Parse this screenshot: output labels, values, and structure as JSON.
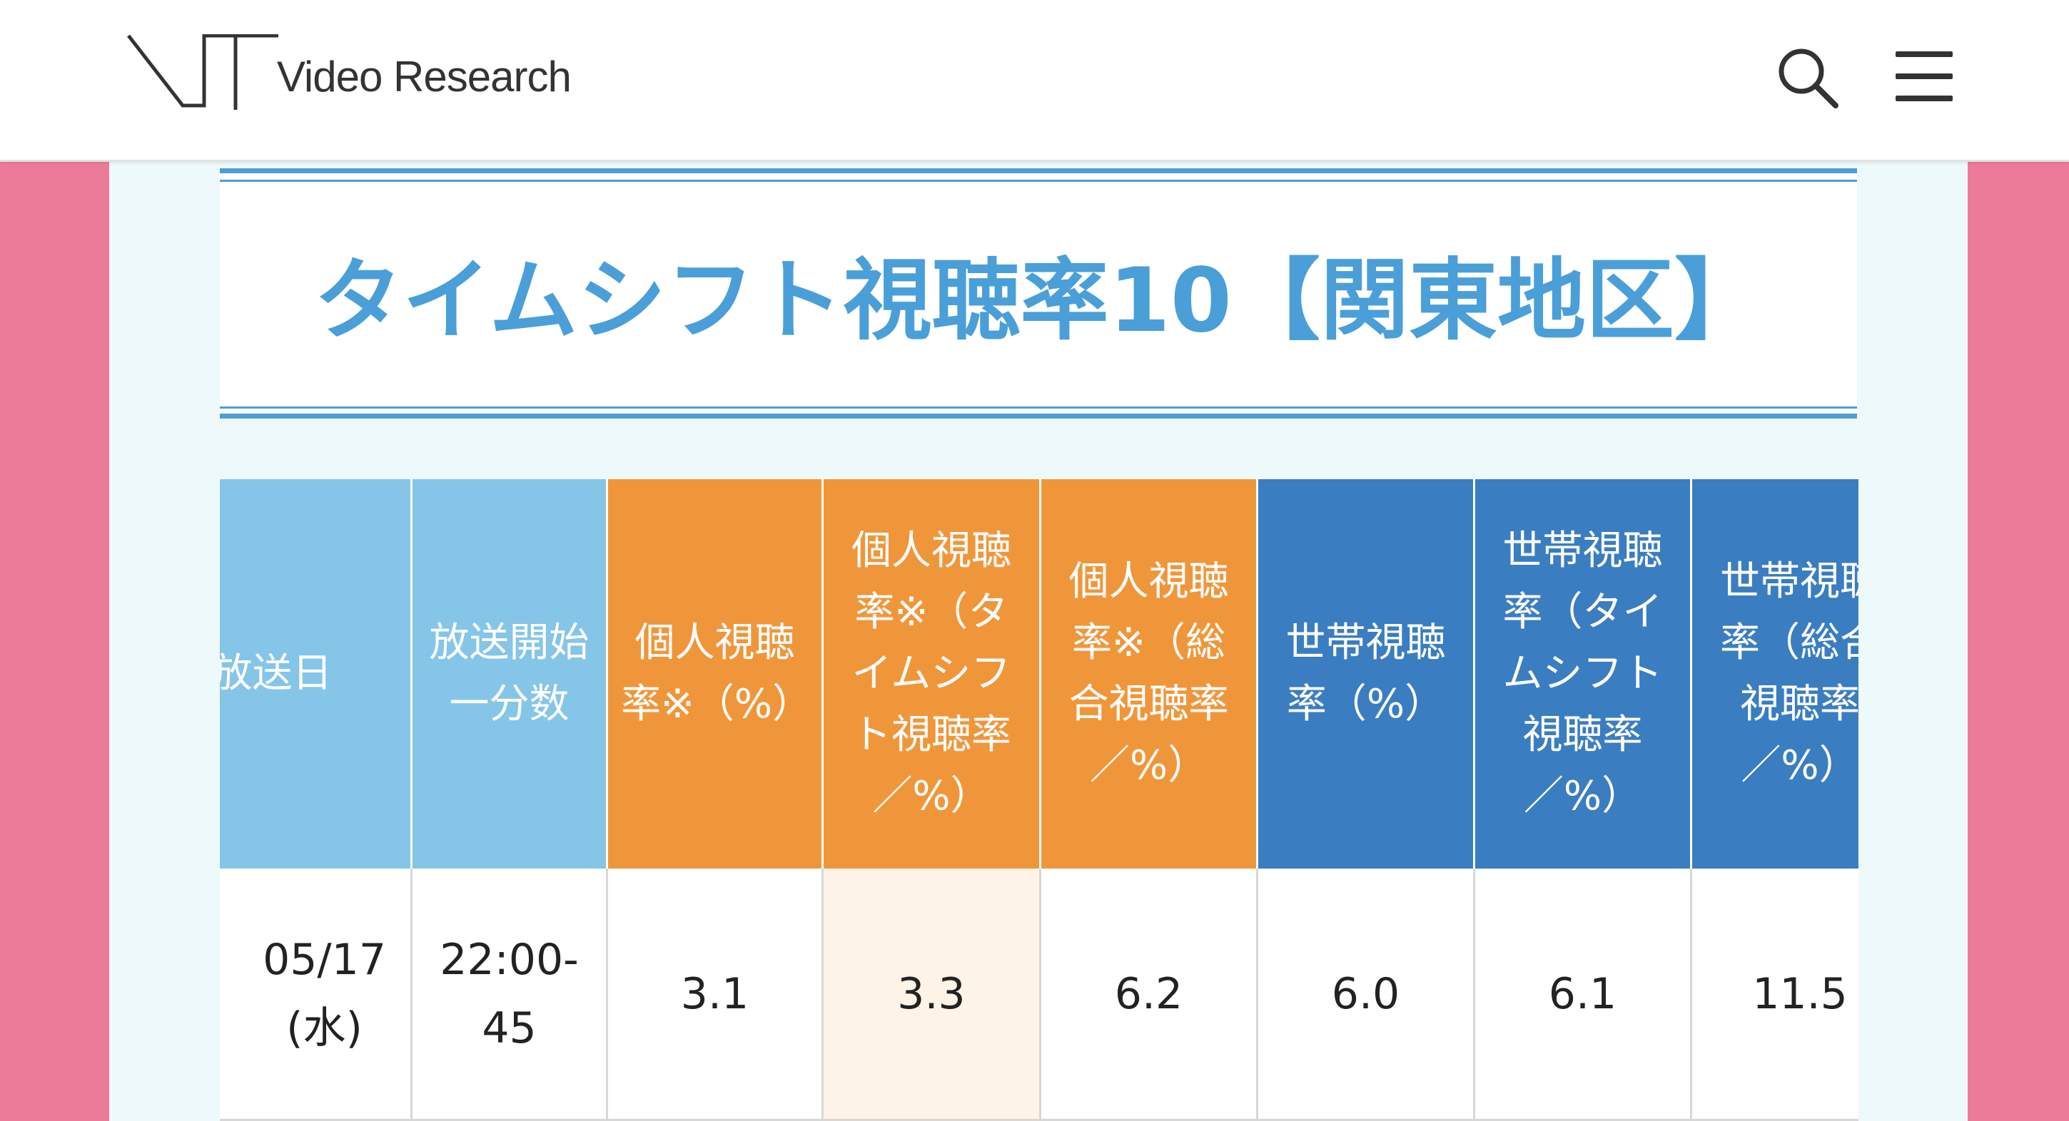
{
  "header": {
    "brand": "Video Research",
    "search_icon": "search-icon",
    "menu_icon": "hamburger-menu-icon"
  },
  "title": "タイムシフト視聴率10【関東地区】",
  "colors": {
    "title": "#4a9fd8",
    "header_light": "#85c5e8",
    "header_orange": "#f0963a",
    "header_blue": "#3a7dc1",
    "highlight": "#fdf3e7",
    "side_bg": "#ec7a99",
    "panel_bg": "#eef9fc"
  },
  "table": {
    "columns": [
      "放送日",
      "放送開始一分数",
      "個人視聴率※（%）",
      "個人視聴率※（タイムシフト視聴率／%）",
      "個人視聴率※（総合視聴率／%）",
      "世帯視聴率（%）",
      "世帯視聴率（タイムシフト視聴率／%）",
      "世帯視聴率（総合視聴率／%）"
    ],
    "rows": [
      {
        "date_line1": "05/17",
        "date_line2": "(水)",
        "start_line1": "22:00-",
        "start_line2": "45",
        "personal": "3.1",
        "personal_ts": "3.3",
        "personal_total": "6.2",
        "household": "6.0",
        "household_ts": "6.1",
        "household_total": "11.5"
      }
    ]
  }
}
